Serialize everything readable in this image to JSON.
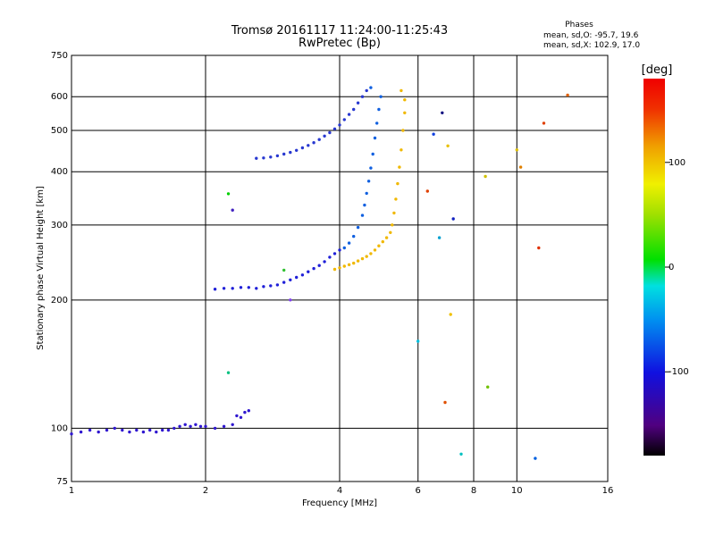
{
  "chart_data": {
    "type": "scatter",
    "title": "Tromsø 20161117 11:24:00-11:25:43",
    "subtitle": "RwPretec (Bp)",
    "xlabel": "Frequency [MHz]",
    "ylabel": "Stationary phase Virtual Height [km]",
    "x_scale": "log",
    "y_scale": "log",
    "xlim": [
      1,
      16
    ],
    "ylim": [
      75,
      750
    ],
    "x_ticks": [
      1,
      2,
      4,
      6,
      8,
      10,
      16
    ],
    "y_ticks": [
      75,
      100,
      200,
      300,
      400,
      500,
      600,
      750
    ],
    "grid": true,
    "phases_note": {
      "heading": "Phases",
      "line1": "mean, sd,O: -95.7, 19.6",
      "line2": "mean, sd,X: 102.9, 17.0"
    },
    "colorbar": {
      "label": "[deg]",
      "ticks": [
        100,
        0,
        -100
      ],
      "range": [
        -180,
        180
      ]
    },
    "series": [
      {
        "trace": "e-region",
        "color": "#3018d0",
        "points": [
          [
            1.0,
            97
          ],
          [
            1.05,
            98
          ],
          [
            1.1,
            99
          ],
          [
            1.15,
            98
          ],
          [
            1.2,
            99
          ],
          [
            1.25,
            100
          ],
          [
            1.3,
            99
          ],
          [
            1.35,
            98
          ],
          [
            1.4,
            99
          ],
          [
            1.45,
            98
          ],
          [
            1.5,
            99
          ],
          [
            1.55,
            98
          ],
          [
            1.6,
            99
          ],
          [
            1.65,
            99
          ],
          [
            1.7,
            100
          ],
          [
            1.75,
            101
          ],
          [
            1.8,
            102
          ],
          [
            1.85,
            101
          ],
          [
            1.9,
            102
          ],
          [
            1.95,
            101
          ],
          [
            2.0,
            101
          ],
          [
            2.1,
            100
          ],
          [
            2.2,
            101
          ],
          [
            2.3,
            102
          ],
          [
            2.35,
            107
          ],
          [
            2.4,
            106
          ],
          [
            2.45,
            109
          ],
          [
            2.5,
            110
          ]
        ]
      },
      {
        "trace": "f-lower-o",
        "color": "#2020d8",
        "points": [
          [
            2.1,
            212
          ],
          [
            2.2,
            213
          ],
          [
            2.3,
            213
          ],
          [
            2.4,
            214
          ],
          [
            2.5,
            214
          ],
          [
            2.6,
            213
          ],
          [
            2.7,
            215
          ],
          [
            2.8,
            216
          ],
          [
            2.9,
            217
          ],
          [
            3.0,
            220
          ],
          [
            3.1,
            223
          ],
          [
            3.2,
            226
          ],
          [
            3.3,
            229
          ],
          [
            3.4,
            233
          ],
          [
            3.5,
            237
          ],
          [
            3.6,
            241
          ],
          [
            3.7,
            246
          ],
          [
            3.8,
            252
          ],
          [
            3.9,
            257
          ],
          [
            4.0,
            262
          ]
        ]
      },
      {
        "trace": "f-lower-o-rise",
        "color": "#1060e0",
        "points": [
          [
            4.1,
            265
          ],
          [
            4.2,
            272
          ],
          [
            4.3,
            282
          ],
          [
            4.4,
            296
          ],
          [
            4.5,
            316
          ],
          [
            4.55,
            334
          ],
          [
            4.6,
            356
          ],
          [
            4.65,
            380
          ],
          [
            4.7,
            408
          ],
          [
            4.75,
            440
          ],
          [
            4.8,
            480
          ],
          [
            4.85,
            520
          ],
          [
            4.9,
            560
          ],
          [
            4.95,
            600
          ],
          [
            4.7,
            630
          ]
        ]
      },
      {
        "trace": "f-upper-o",
        "color": "#2838d0",
        "points": [
          [
            2.6,
            430
          ],
          [
            2.7,
            431
          ],
          [
            2.8,
            433
          ],
          [
            2.9,
            436
          ],
          [
            3.0,
            440
          ],
          [
            3.1,
            444
          ],
          [
            3.2,
            449
          ],
          [
            3.3,
            455
          ],
          [
            3.4,
            461
          ],
          [
            3.5,
            468
          ],
          [
            3.6,
            476
          ],
          [
            3.7,
            485
          ],
          [
            3.8,
            494
          ],
          [
            3.9,
            504
          ],
          [
            4.0,
            515
          ],
          [
            4.1,
            530
          ],
          [
            4.2,
            545
          ],
          [
            4.3,
            560
          ],
          [
            4.4,
            580
          ],
          [
            4.5,
            600
          ],
          [
            4.6,
            620
          ]
        ]
      },
      {
        "trace": "f-x",
        "color": "#f0b800",
        "points": [
          [
            3.9,
            236
          ],
          [
            4.0,
            238
          ],
          [
            4.1,
            240
          ],
          [
            4.2,
            242
          ],
          [
            4.3,
            244
          ],
          [
            4.4,
            247
          ],
          [
            4.5,
            250
          ],
          [
            4.6,
            253
          ],
          [
            4.7,
            257
          ],
          [
            4.8,
            262
          ],
          [
            4.9,
            268
          ],
          [
            5.0,
            274
          ],
          [
            5.1,
            280
          ],
          [
            5.2,
            288
          ],
          [
            5.25,
            300
          ],
          [
            5.3,
            320
          ],
          [
            5.35,
            345
          ],
          [
            5.4,
            375
          ],
          [
            5.45,
            410
          ],
          [
            5.5,
            450
          ],
          [
            5.55,
            500
          ],
          [
            5.6,
            550
          ],
          [
            5.6,
            590
          ],
          [
            5.5,
            620
          ]
        ]
      },
      {
        "trace": "scattered",
        "color": "multi",
        "points": [
          [
            2.25,
            355
          ],
          [
            2.25,
            135
          ],
          [
            2.3,
            325
          ],
          [
            3.0,
            235
          ],
          [
            3.1,
            200
          ],
          [
            6.0,
            160
          ],
          [
            6.3,
            360
          ],
          [
            6.5,
            490
          ],
          [
            6.7,
            280
          ],
          [
            6.8,
            550
          ],
          [
            6.9,
            115
          ],
          [
            7.0,
            460
          ],
          [
            7.1,
            185
          ],
          [
            7.2,
            310
          ],
          [
            7.5,
            87
          ],
          [
            8.5,
            390
          ],
          [
            8.6,
            125
          ],
          [
            10.0,
            450
          ],
          [
            10.2,
            410
          ],
          [
            11.0,
            85
          ],
          [
            11.2,
            265
          ],
          [
            11.5,
            520
          ],
          [
            13.0,
            605
          ]
        ]
      }
    ]
  }
}
